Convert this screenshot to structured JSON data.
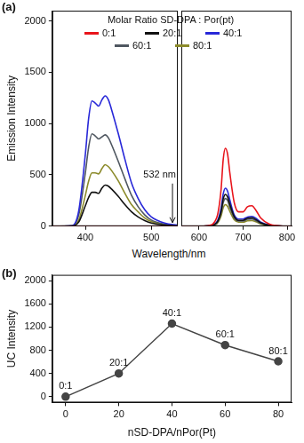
{
  "chart_data": [
    {
      "type": "line",
      "panel_label": "(a)",
      "x_label": "Wavelength/nm",
      "y_label": "Emission Intensity",
      "legend_title": "Molar Ratio SD-DPA : Por(pt)",
      "legend": "top",
      "grid": false,
      "xlim": [
        350,
        810
      ],
      "x_break": [
        540,
        560
      ],
      "xticks": [
        400,
        500,
        600,
        700,
        800
      ],
      "ylim": [
        0,
        2100
      ],
      "yticks": [
        0,
        500,
        1000,
        1500,
        2000
      ],
      "annotations": [
        {
          "text": "532 nm",
          "x": 532,
          "y": 450
        }
      ],
      "x": [
        350,
        380,
        390,
        400,
        405,
        410,
        415,
        420,
        425,
        430,
        435,
        440,
        450,
        460,
        470,
        480,
        490,
        500,
        520,
        540,
        560,
        600,
        620,
        640,
        650,
        655,
        660,
        665,
        670,
        680,
        690,
        700,
        710,
        720,
        730,
        740,
        760,
        780,
        800,
        810
      ],
      "series": [
        {
          "name": "0:1",
          "color": "#e8141b",
          "values": [
            0,
            0,
            0,
            0,
            0,
            0,
            0,
            0,
            0,
            0,
            0,
            0,
            0,
            0,
            0,
            0,
            0,
            0,
            0,
            0,
            0,
            0,
            5,
            80,
            350,
            650,
            760,
            700,
            520,
            230,
            140,
            140,
            190,
            200,
            150,
            80,
            20,
            5,
            0,
            0
          ]
        },
        {
          "name": "20:1",
          "color": "#111111",
          "values": [
            0,
            2,
            40,
            200,
            280,
            330,
            330,
            320,
            370,
            400,
            390,
            360,
            290,
            210,
            140,
            90,
            55,
            30,
            10,
            3,
            0,
            0,
            2,
            33,
            140,
            265,
            310,
            285,
            215,
            95,
            57,
            57,
            78,
            82,
            62,
            33,
            8,
            2,
            0,
            0
          ]
        },
        {
          "name": "40:1",
          "color": "#2828d8",
          "values": [
            0,
            5,
            150,
            700,
            1050,
            1220,
            1200,
            1170,
            1230,
            1270,
            1230,
            1130,
            900,
            650,
            420,
            270,
            160,
            90,
            30,
            10,
            0,
            0,
            2,
            40,
            170,
            315,
            370,
            340,
            255,
            110,
            70,
            70,
            90,
            95,
            75,
            40,
            10,
            2,
            0,
            0
          ]
        },
        {
          "name": "60:1",
          "color": "#4f5760",
          "values": [
            0,
            4,
            110,
            520,
            770,
            900,
            880,
            850,
            870,
            890,
            860,
            790,
            630,
            460,
            300,
            190,
            110,
            60,
            20,
            5,
            0,
            0,
            2,
            28,
            125,
            230,
            270,
            250,
            185,
            82,
            50,
            50,
            67,
            71,
            53,
            28,
            7,
            2,
            0,
            0
          ]
        },
        {
          "name": "80:1",
          "color": "#8b8a2a",
          "values": [
            0,
            3,
            60,
            300,
            440,
            520,
            520,
            510,
            560,
            600,
            580,
            540,
            440,
            320,
            210,
            140,
            80,
            45,
            15,
            5,
            0,
            0,
            1,
            22,
            97,
            180,
            210,
            193,
            144,
            63,
            39,
            39,
            52,
            55,
            41,
            22,
            6,
            1,
            0,
            0
          ]
        }
      ]
    },
    {
      "type": "line",
      "panel_label": "(b)",
      "x_label": "nSD-DPA/nPor(Pt)",
      "y_label": "UC Intensity",
      "grid": false,
      "xlim": [
        -5,
        85
      ],
      "xticks": [
        0,
        20,
        40,
        60,
        80
      ],
      "ylim": [
        -100,
        2100
      ],
      "yticks": [
        0,
        400,
        800,
        1200,
        1600,
        2000
      ],
      "x": [
        0,
        20,
        40,
        60,
        80
      ],
      "series": [
        {
          "color": "#444444",
          "marker": "circle",
          "values": [
            0,
            400,
            1260,
            890,
            610
          ],
          "point_labels": [
            "0:1",
            "20:1",
            "40:1",
            "60:1",
            "80:1"
          ]
        }
      ]
    }
  ]
}
